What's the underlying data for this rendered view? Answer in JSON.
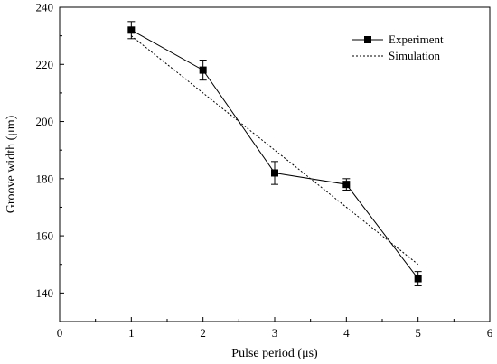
{
  "chart_data": {
    "type": "line",
    "title": "",
    "xlabel": "Pulse period (μs)",
    "ylabel": "Groove width (μm)",
    "xlim": [
      0,
      6
    ],
    "ylim": [
      130,
      240
    ],
    "xticks": [
      0,
      1,
      2,
      3,
      4,
      5,
      6
    ],
    "yticks": [
      140,
      160,
      180,
      200,
      220,
      240
    ],
    "grid": false,
    "legend_position": "top-right",
    "series": [
      {
        "name": "Experiment",
        "style": "solid line with square markers and error bars",
        "color": "#000000",
        "x": [
          1,
          2,
          3,
          4,
          5
        ],
        "y": [
          232,
          218,
          182,
          178,
          145
        ],
        "error": [
          3,
          3.5,
          4,
          2,
          2.5
        ]
      },
      {
        "name": "Simulation",
        "style": "dashed line",
        "color": "#000000",
        "x": [
          1,
          5
        ],
        "y": [
          230,
          150
        ]
      }
    ]
  }
}
